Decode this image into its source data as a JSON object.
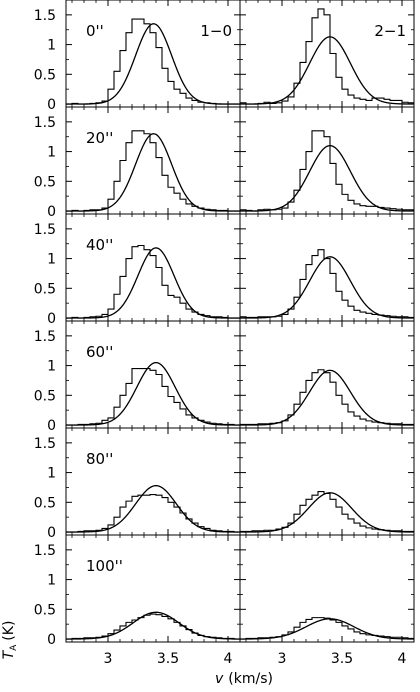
{
  "chart_data": {
    "type": "line",
    "layout": {
      "rows": 6,
      "columns": 2
    },
    "xlim": [
      2.65,
      4.1
    ],
    "ylim": [
      -0.05,
      1.75
    ],
    "x_ticks": [
      3,
      3.5,
      4
    ],
    "x_tick_labels": [
      "3",
      "3.5",
      "4"
    ],
    "y_ticks": [
      0,
      0.5,
      1,
      1.5
    ],
    "y_tick_labels": [
      "0",
      "0.5",
      "1",
      "1.5"
    ],
    "xlabel": "v (km/s)",
    "ylabel": "T_A (K)",
    "xlabel_parts": {
      "main": "v",
      "rest": "(km/s)"
    },
    "ylabel_parts": {
      "main": "T",
      "sub": "A",
      "rest": "(K)"
    },
    "column_labels": [
      "1−0",
      "2−1"
    ],
    "row_labels": [
      "0''",
      "20''",
      "40''",
      "60''",
      "80''",
      "100''"
    ],
    "spectrum_x": [
      2.675,
      2.725,
      2.775,
      2.825,
      2.875,
      2.925,
      2.975,
      3.025,
      3.075,
      3.125,
      3.175,
      3.225,
      3.275,
      3.325,
      3.375,
      3.425,
      3.475,
      3.525,
      3.575,
      3.625,
      3.675,
      3.725,
      3.775,
      3.825,
      3.875,
      3.925,
      3.975,
      4.025,
      4.075
    ],
    "panels": [
      {
        "row": 0,
        "col": 0,
        "gaussian": {
          "amplitude": 1.35,
          "center": 3.38,
          "sigma": 0.15
        },
        "spectrum": [
          0.0,
          0.01,
          0.0,
          0.0,
          0.01,
          0.02,
          0.05,
          0.25,
          0.55,
          0.9,
          1.2,
          1.43,
          1.43,
          1.35,
          1.2,
          0.95,
          0.6,
          0.38,
          0.25,
          0.18,
          0.1,
          0.06,
          0.03,
          0.02,
          0.01,
          0.0,
          0.0,
          0.0,
          0.0
        ]
      },
      {
        "row": 0,
        "col": 1,
        "gaussian": {
          "amplitude": 1.13,
          "center": 3.4,
          "sigma": 0.17
        },
        "spectrum": [
          0.02,
          0.0,
          0.0,
          0.01,
          0.03,
          0.01,
          0.02,
          0.05,
          0.12,
          0.35,
          0.7,
          1.05,
          1.45,
          1.6,
          1.5,
          0.85,
          0.45,
          0.25,
          0.15,
          0.1,
          0.08,
          0.06,
          0.1,
          0.1,
          0.08,
          0.06,
          0.06,
          0.03,
          0.02
        ]
      },
      {
        "row": 1,
        "col": 0,
        "gaussian": {
          "amplitude": 1.3,
          "center": 3.38,
          "sigma": 0.15
        },
        "spectrum": [
          0.0,
          0.01,
          0.0,
          0.01,
          0.02,
          0.02,
          0.05,
          0.2,
          0.5,
          0.85,
          1.15,
          1.35,
          1.35,
          1.3,
          1.15,
          0.9,
          0.6,
          0.4,
          0.3,
          0.2,
          0.12,
          0.08,
          0.05,
          0.03,
          0.02,
          0.01,
          0.01,
          0.0,
          0.0
        ]
      },
      {
        "row": 1,
        "col": 1,
        "gaussian": {
          "amplitude": 1.1,
          "center": 3.4,
          "sigma": 0.17
        },
        "spectrum": [
          0.02,
          0.01,
          0.0,
          0.02,
          0.03,
          0.02,
          0.03,
          0.05,
          0.15,
          0.35,
          0.7,
          1.0,
          1.35,
          1.35,
          1.25,
          0.8,
          0.45,
          0.28,
          0.18,
          0.12,
          0.09,
          0.08,
          0.08,
          0.06,
          0.05,
          0.04,
          0.03,
          0.02,
          0.02
        ]
      },
      {
        "row": 2,
        "col": 0,
        "gaussian": {
          "amplitude": 1.18,
          "center": 3.4,
          "sigma": 0.15
        },
        "spectrum": [
          0.0,
          0.01,
          0.0,
          0.01,
          0.02,
          0.03,
          0.06,
          0.15,
          0.4,
          0.7,
          1.0,
          1.2,
          1.22,
          1.15,
          1.05,
          0.85,
          0.55,
          0.38,
          0.35,
          0.25,
          0.15,
          0.1,
          0.06,
          0.04,
          0.02,
          0.02,
          0.01,
          0.0,
          0.0
        ]
      },
      {
        "row": 2,
        "col": 1,
        "gaussian": {
          "amplitude": 1.03,
          "center": 3.4,
          "sigma": 0.17
        },
        "spectrum": [
          0.02,
          0.01,
          0.01,
          0.02,
          0.02,
          0.02,
          0.03,
          0.06,
          0.15,
          0.35,
          0.65,
          0.9,
          1.05,
          1.15,
          1.0,
          0.75,
          0.45,
          0.3,
          0.2,
          0.13,
          0.1,
          0.08,
          0.06,
          0.05,
          0.04,
          0.03,
          0.02,
          0.02,
          0.01
        ]
      },
      {
        "row": 3,
        "col": 0,
        "gaussian": {
          "amplitude": 1.05,
          "center": 3.4,
          "sigma": 0.16
        },
        "spectrum": [
          0.0,
          0.0,
          0.01,
          0.01,
          0.02,
          0.03,
          0.08,
          0.12,
          0.3,
          0.5,
          0.7,
          0.95,
          0.95,
          0.95,
          0.92,
          0.85,
          0.65,
          0.48,
          0.38,
          0.27,
          0.17,
          0.12,
          0.08,
          0.05,
          0.03,
          0.02,
          0.01,
          0.01,
          0.0
        ]
      },
      {
        "row": 3,
        "col": 1,
        "gaussian": {
          "amplitude": 0.92,
          "center": 3.4,
          "sigma": 0.17
        },
        "spectrum": [
          0.01,
          0.01,
          0.01,
          0.02,
          0.02,
          0.03,
          0.04,
          0.07,
          0.17,
          0.35,
          0.55,
          0.75,
          0.88,
          0.93,
          0.88,
          0.72,
          0.5,
          0.35,
          0.22,
          0.15,
          0.1,
          0.07,
          0.05,
          0.04,
          0.03,
          0.02,
          0.02,
          0.01,
          0.01
        ]
      },
      {
        "row": 4,
        "col": 0,
        "gaussian": {
          "amplitude": 0.78,
          "center": 3.4,
          "sigma": 0.17
        },
        "spectrum": [
          0.0,
          0.0,
          0.01,
          0.02,
          0.02,
          0.03,
          0.06,
          0.12,
          0.25,
          0.42,
          0.52,
          0.6,
          0.62,
          0.62,
          0.63,
          0.62,
          0.58,
          0.5,
          0.42,
          0.32,
          0.22,
          0.15,
          0.09,
          0.06,
          0.03,
          0.02,
          0.01,
          0.01,
          0.0
        ]
      },
      {
        "row": 4,
        "col": 1,
        "gaussian": {
          "amplitude": 0.66,
          "center": 3.4,
          "sigma": 0.18
        },
        "spectrum": [
          0.01,
          0.01,
          0.02,
          0.02,
          0.03,
          0.03,
          0.05,
          0.08,
          0.15,
          0.3,
          0.45,
          0.55,
          0.62,
          0.68,
          0.65,
          0.55,
          0.42,
          0.3,
          0.22,
          0.15,
          0.1,
          0.07,
          0.05,
          0.04,
          0.03,
          0.02,
          0.02,
          0.01,
          0.01
        ]
      },
      {
        "row": 5,
        "col": 0,
        "gaussian": {
          "amplitude": 0.45,
          "center": 3.4,
          "sigma": 0.19
        },
        "spectrum": [
          0.0,
          0.01,
          0.01,
          0.02,
          0.02,
          0.03,
          0.05,
          0.09,
          0.15,
          0.22,
          0.28,
          0.32,
          0.36,
          0.4,
          0.42,
          0.41,
          0.38,
          0.34,
          0.28,
          0.22,
          0.16,
          0.1,
          0.06,
          0.04,
          0.03,
          0.02,
          0.01,
          0.01,
          0.0
        ]
      },
      {
        "row": 5,
        "col": 1,
        "gaussian": {
          "amplitude": 0.34,
          "center": 3.4,
          "sigma": 0.2
        },
        "spectrum": [
          0.0,
          0.01,
          0.01,
          0.02,
          0.02,
          0.03,
          0.04,
          0.07,
          0.12,
          0.2,
          0.28,
          0.33,
          0.36,
          0.36,
          0.35,
          0.32,
          0.28,
          0.22,
          0.17,
          0.12,
          0.09,
          0.07,
          0.06,
          0.05,
          0.04,
          0.03,
          0.03,
          0.02,
          0.01
        ]
      }
    ]
  }
}
